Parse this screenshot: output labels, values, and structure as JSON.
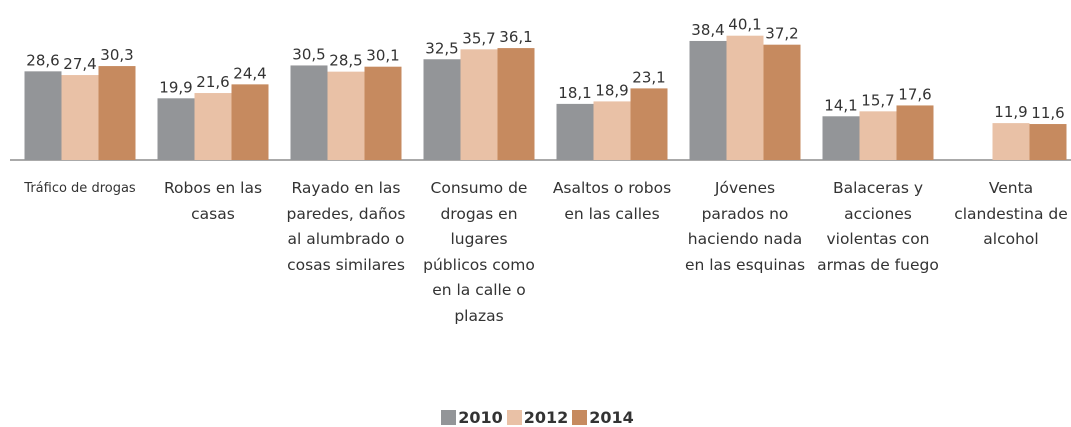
{
  "chart_data": {
    "type": "bar",
    "categories": [
      "Tráfico de drogas",
      "Robos en las casas",
      "Rayado en las paredes, daños al alumbrado o cosas similares",
      "Consumo de drogas en lugares públicos como en la calle o plazas",
      "Asaltos o robos en las calles",
      "Jóvenes parados no haciendo nada en las esquinas",
      "Balaceras y acciones violentas con armas de fuego",
      "Venta clandestina de alcohol"
    ],
    "series": [
      {
        "name": "2010",
        "color": "#939598",
        "values": [
          28.6,
          19.9,
          30.5,
          32.5,
          18.1,
          38.4,
          14.1,
          null
        ],
        "value_labels": [
          "28,6",
          "19,9",
          "30,5",
          "32,5",
          "18,1",
          "38,4",
          "14,1",
          null
        ]
      },
      {
        "name": "2012",
        "color": "#e9c1a6",
        "values": [
          27.4,
          21.6,
          28.5,
          35.7,
          18.9,
          40.1,
          15.7,
          11.9
        ],
        "value_labels": [
          "27,4",
          "21,6",
          "28,5",
          "35,7",
          "18,9",
          "40,1",
          "15,7",
          "11,9"
        ]
      },
      {
        "name": "2014",
        "color": "#c68a5f",
        "values": [
          30.3,
          24.4,
          30.1,
          36.1,
          23.1,
          37.2,
          17.6,
          11.6
        ],
        "value_labels": [
          "30,3",
          "24,4",
          "30,1",
          "36,1",
          "23,1",
          "37,2",
          "17,6",
          "11,6"
        ]
      }
    ],
    "legend": "bottom"
  }
}
